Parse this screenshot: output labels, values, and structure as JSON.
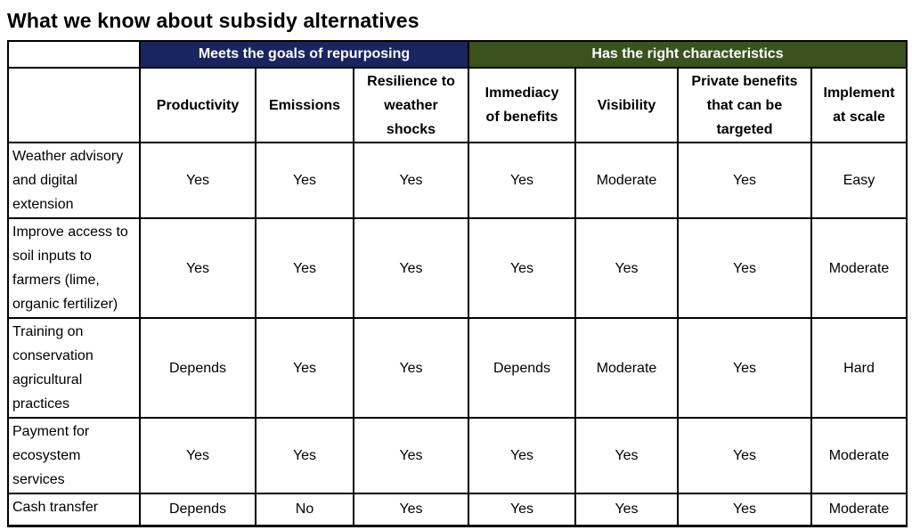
{
  "page": {
    "title": "What we know about subsidy alternatives",
    "background_color": "#ffffff"
  },
  "table": {
    "corner_cell": "",
    "column_groups": [
      {
        "label": "Meets the goals of repurposing",
        "color": "#18255E",
        "span": 3
      },
      {
        "label": "Has the right characteristics",
        "color": "#3A521E",
        "span": 4
      }
    ],
    "columns": [
      "Productivity",
      "Emissions",
      "Resilience to weather shocks",
      "Immediacy of benefits",
      "Visibility",
      "Private benefits that can be targeted",
      "Implement at scale"
    ],
    "rows": [
      {
        "label": "Weather advisory and digital extension",
        "values": [
          "Yes",
          "Yes",
          "Yes",
          "Yes",
          "Moderate",
          "Yes",
          "Easy"
        ]
      },
      {
        "label": "Improve access to soil inputs to farmers (lime, organic fertilizer)",
        "values": [
          "Yes",
          "Yes",
          "Yes",
          "Yes",
          "Yes",
          "Yes",
          "Moderate"
        ]
      },
      {
        "label": "Training on conservation agricultural practices",
        "values": [
          "Depends",
          "Yes",
          "Yes",
          "Depends",
          "Moderate",
          "Yes",
          "Hard"
        ]
      },
      {
        "label": "Payment for ecosystem services",
        "values": [
          "Yes",
          "Yes",
          "Yes",
          "Yes",
          "Yes",
          "Yes",
          "Moderate"
        ]
      },
      {
        "label": "Cash transfer",
        "values": [
          "Depends",
          "No",
          "Yes",
          "Yes",
          "Yes",
          "Yes",
          "Moderate"
        ]
      }
    ]
  }
}
